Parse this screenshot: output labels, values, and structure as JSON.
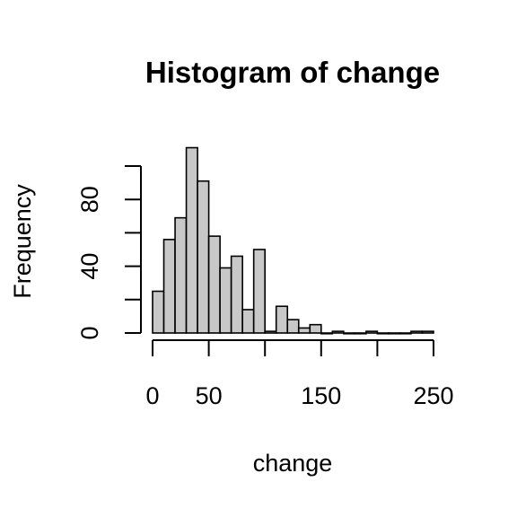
{
  "chart_data": {
    "type": "bar",
    "title": "Histogram of change",
    "xlabel": "change",
    "ylabel": "Frequency",
    "x_ticks": [
      0,
      50,
      150,
      250
    ],
    "x_tick_marks": [
      0,
      50,
      100,
      150,
      200,
      250
    ],
    "y_ticks": [
      0,
      40,
      80
    ],
    "y_tick_marks": [
      0,
      20,
      40,
      60,
      80,
      100
    ],
    "xlim": [
      0,
      250
    ],
    "ylim": [
      0,
      100
    ],
    "bin_width": 10,
    "bin_starts": [
      0,
      10,
      20,
      30,
      40,
      50,
      60,
      70,
      80,
      90,
      100,
      110,
      120,
      130,
      140,
      150,
      160,
      170,
      180,
      190,
      200,
      210,
      220,
      230,
      240
    ],
    "counts": [
      25,
      56,
      69,
      111,
      91,
      58,
      39,
      46,
      14,
      50,
      1,
      16,
      8,
      3,
      5,
      0,
      1,
      0,
      0,
      1,
      0,
      0,
      0,
      1,
      1
    ],
    "bar_color": "#c8c8c8",
    "grid": false
  }
}
